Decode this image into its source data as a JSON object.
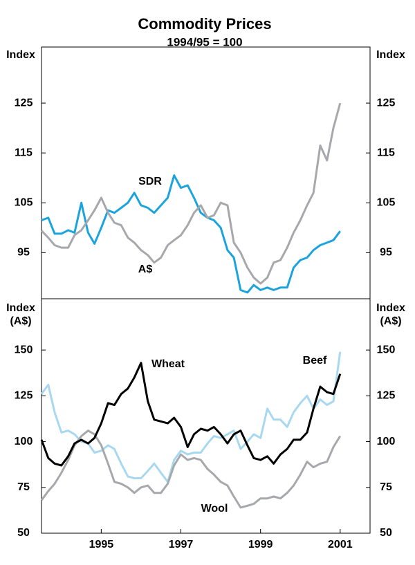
{
  "chart_data": [
    {
      "type": "line",
      "title": "Commodity Prices",
      "subtitle": "1994/95 = 100",
      "ylabel": [
        "Index"
      ],
      "xlim": [
        1994,
        2002.25
      ],
      "ylim": [
        85.75,
        136.25
      ],
      "yticks": [
        95,
        105,
        115,
        125
      ],
      "x": [
        1994.0,
        1994.17,
        1994.33,
        1994.5,
        1994.67,
        1994.83,
        1995.0,
        1995.17,
        1995.33,
        1995.5,
        1995.67,
        1995.83,
        1996.0,
        1996.17,
        1996.33,
        1996.5,
        1996.67,
        1996.83,
        1997.0,
        1997.17,
        1997.33,
        1997.5,
        1997.67,
        1997.83,
        1998.0,
        1998.17,
        1998.33,
        1998.5,
        1998.67,
        1998.83,
        1999.0,
        1999.17,
        1999.33,
        1999.5,
        1999.67,
        1999.83,
        2000.0,
        2000.17,
        2000.33,
        2000.5,
        2000.67,
        2000.83,
        2001.0,
        2001.17,
        2001.33,
        2001.5
      ],
      "series": [
        {
          "name": "SDR",
          "color": "#1aa3dc",
          "values": [
            101.5,
            102,
            98.8,
            98.8,
            99.5,
            99,
            105,
            99,
            96.8,
            100,
            103.5,
            103,
            104,
            105,
            107,
            104.5,
            104,
            103,
            104.5,
            106,
            110.5,
            108,
            108.5,
            106,
            103,
            102,
            101.5,
            100,
            95.5,
            94,
            87.5,
            87,
            88.5,
            87.5,
            88,
            87.5,
            88,
            88,
            92,
            93.5,
            94,
            95.5,
            96.5,
            97,
            97.5,
            99.3
          ]
        },
        {
          "name": "A$",
          "color": "#a6a8ab",
          "values": [
            99.4,
            98,
            96.5,
            96,
            96,
            98.5,
            99.5,
            101.5,
            103.5,
            106,
            103,
            101,
            100.5,
            98,
            97,
            95.5,
            94.5,
            93,
            94,
            96.5,
            97.5,
            98.5,
            100.5,
            103,
            104.5,
            102,
            102.5,
            105,
            104.5,
            97,
            95,
            92,
            90,
            88.8,
            90,
            93,
            93.5,
            96,
            99,
            101.5,
            104.5,
            107,
            116.5,
            113.5,
            120,
            125
          ]
        }
      ]
    },
    {
      "type": "line",
      "ylabel": [
        "Index",
        "(A$)"
      ],
      "xlim": [
        1994,
        2002.25
      ],
      "ylim": [
        50,
        178
      ],
      "yticks": [
        50,
        75,
        100,
        125,
        150
      ],
      "xticks": [
        {
          "value": 1995.5,
          "label": "1995"
        },
        {
          "value": 1997.5,
          "label": "1997"
        },
        {
          "value": 1999.5,
          "label": "1999"
        },
        {
          "value": 2001.5,
          "label": "2001"
        }
      ],
      "x": [
        1994.0,
        1994.17,
        1994.33,
        1994.5,
        1994.67,
        1994.83,
        1995.0,
        1995.17,
        1995.33,
        1995.5,
        1995.67,
        1995.83,
        1996.0,
        1996.17,
        1996.33,
        1996.5,
        1996.67,
        1996.83,
        1997.0,
        1997.17,
        1997.33,
        1997.5,
        1997.67,
        1997.83,
        1998.0,
        1998.17,
        1998.33,
        1998.5,
        1998.67,
        1998.83,
        1999.0,
        1999.17,
        1999.33,
        1999.5,
        1999.67,
        1999.83,
        2000.0,
        2000.17,
        2000.33,
        2000.5,
        2000.67,
        2000.83,
        2001.0,
        2001.17,
        2001.33,
        2001.5
      ],
      "series": [
        {
          "name": "Beef",
          "color": "#a8d8f0",
          "values": [
            126,
            131,
            116,
            105,
            106,
            104,
            100,
            99,
            94,
            95,
            98,
            96,
            88,
            81,
            80,
            80,
            84,
            88,
            83,
            78,
            90,
            95,
            93,
            94,
            94,
            99,
            103,
            102,
            104,
            106,
            96,
            100,
            104,
            102,
            118,
            112,
            112,
            108,
            116,
            121,
            125,
            118,
            123,
            120,
            122,
            149
          ]
        },
        {
          "name": "Wool",
          "color": "#a6a8ab",
          "values": [
            68,
            73,
            77,
            83,
            90,
            98,
            103,
            106,
            104,
            98,
            88,
            78,
            77,
            75,
            72,
            75,
            76,
            72,
            72,
            77,
            87,
            93,
            90,
            91,
            90,
            85,
            82,
            78,
            76,
            70,
            64,
            65,
            66,
            69,
            69,
            70,
            69,
            72,
            76,
            82,
            89,
            86,
            88,
            89,
            97,
            103
          ]
        },
        {
          "name": "Wheat",
          "color": "#000000",
          "values": [
            101,
            91,
            88,
            87,
            92,
            99,
            101,
            99,
            102,
            110,
            121,
            120,
            126,
            129,
            135,
            143,
            122,
            112,
            111,
            110,
            113,
            108,
            97,
            104,
            107,
            106,
            108,
            104,
            99,
            104,
            106,
            98,
            91,
            90,
            92,
            88,
            93,
            96,
            101,
            101,
            105,
            118,
            130,
            127,
            126,
            137
          ]
        }
      ]
    }
  ]
}
